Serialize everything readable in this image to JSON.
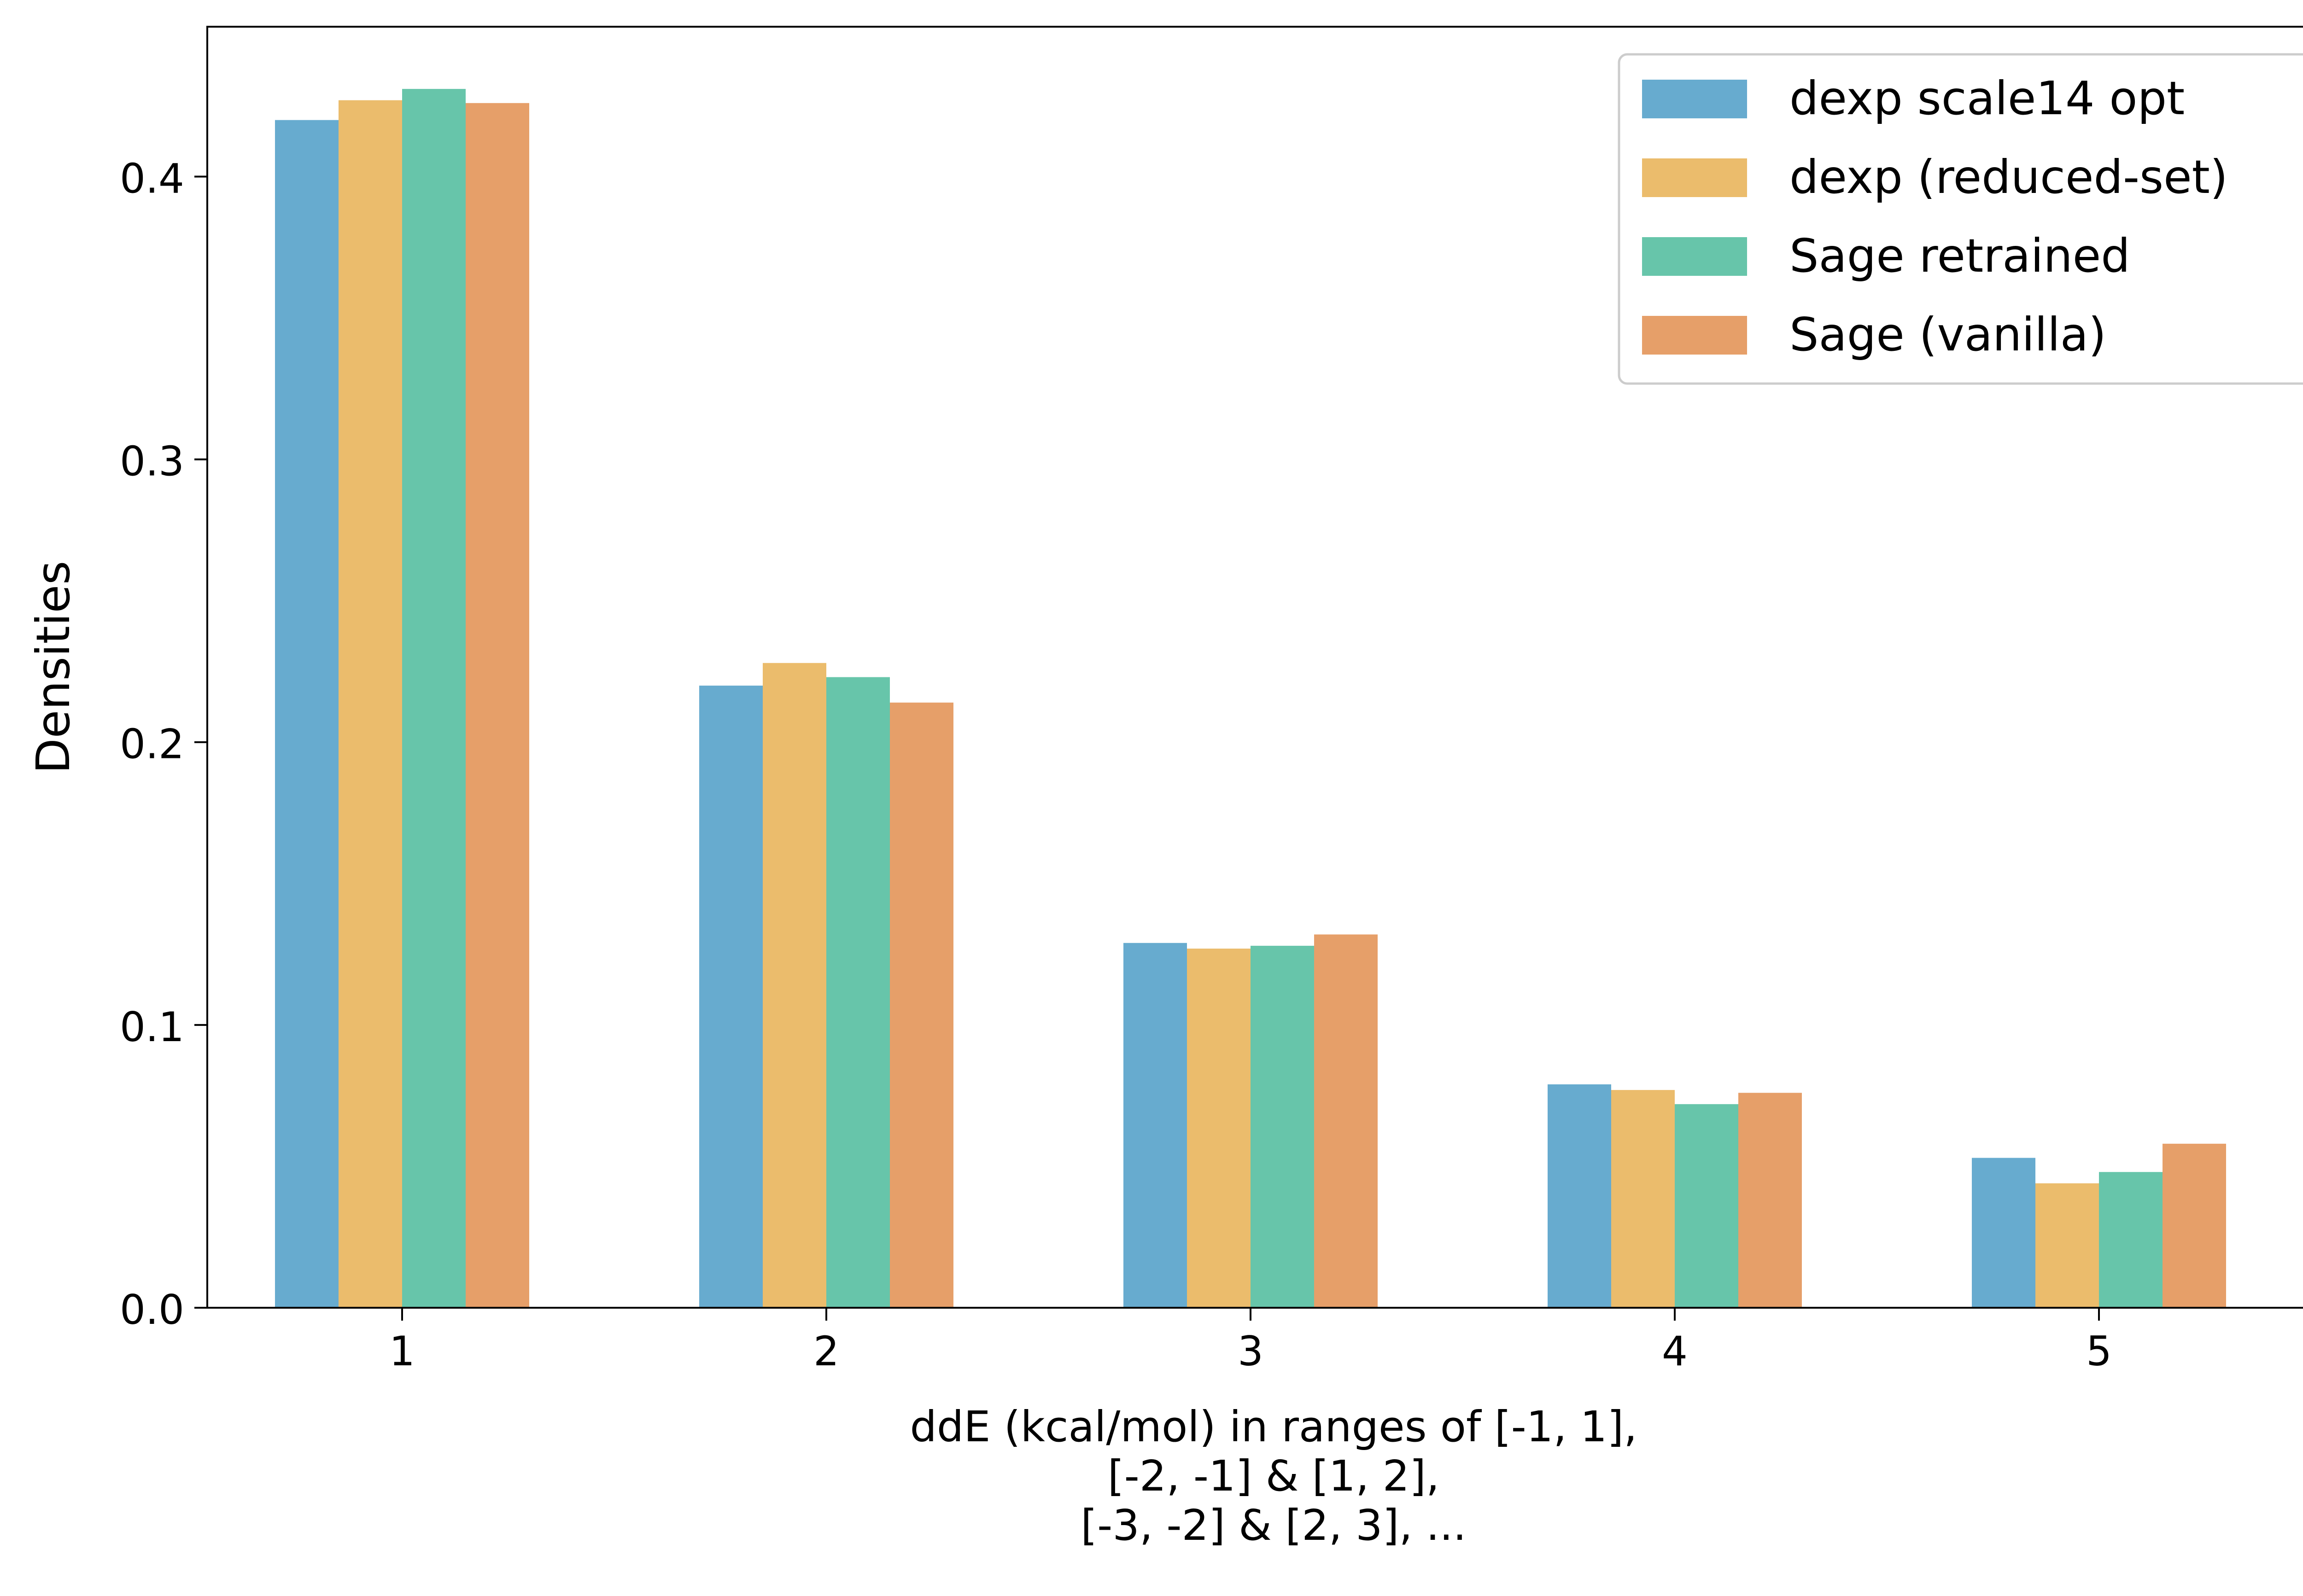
{
  "chart_data": {
    "type": "bar",
    "title": "",
    "xlabel_lines": [
      "ddE (kcal/mol) in ranges of [-1, 1],",
      "[-2, -1] & [1, 2],",
      "[-3, -2] & [2, 3], ..."
    ],
    "ylabel": "Densities",
    "categories": [
      "1",
      "2",
      "3",
      "4",
      "5"
    ],
    "ylim": [
      0,
      0.453
    ],
    "yticks": [
      0.0,
      0.1,
      0.2,
      0.3,
      0.4
    ],
    "ytick_labels": [
      "0.0",
      "0.1",
      "0.2",
      "0.3",
      "0.4"
    ],
    "grid": false,
    "legend_position": "top-right",
    "series": [
      {
        "name": "dexp scale14 opt",
        "color": "#67ABCF",
        "values": [
          0.42,
          0.22,
          0.129,
          0.079,
          0.053
        ]
      },
      {
        "name": "dexp (reduced-set)",
        "color": "#EBBC6C",
        "values": [
          0.427,
          0.228,
          0.127,
          0.077,
          0.044
        ]
      },
      {
        "name": "Sage retrained",
        "color": "#67C5AA",
        "values": [
          0.431,
          0.223,
          0.128,
          0.072,
          0.048
        ]
      },
      {
        "name": "Sage (vanilla)",
        "color": "#E69F69",
        "values": [
          0.426,
          0.214,
          0.132,
          0.076,
          0.058
        ]
      }
    ]
  }
}
